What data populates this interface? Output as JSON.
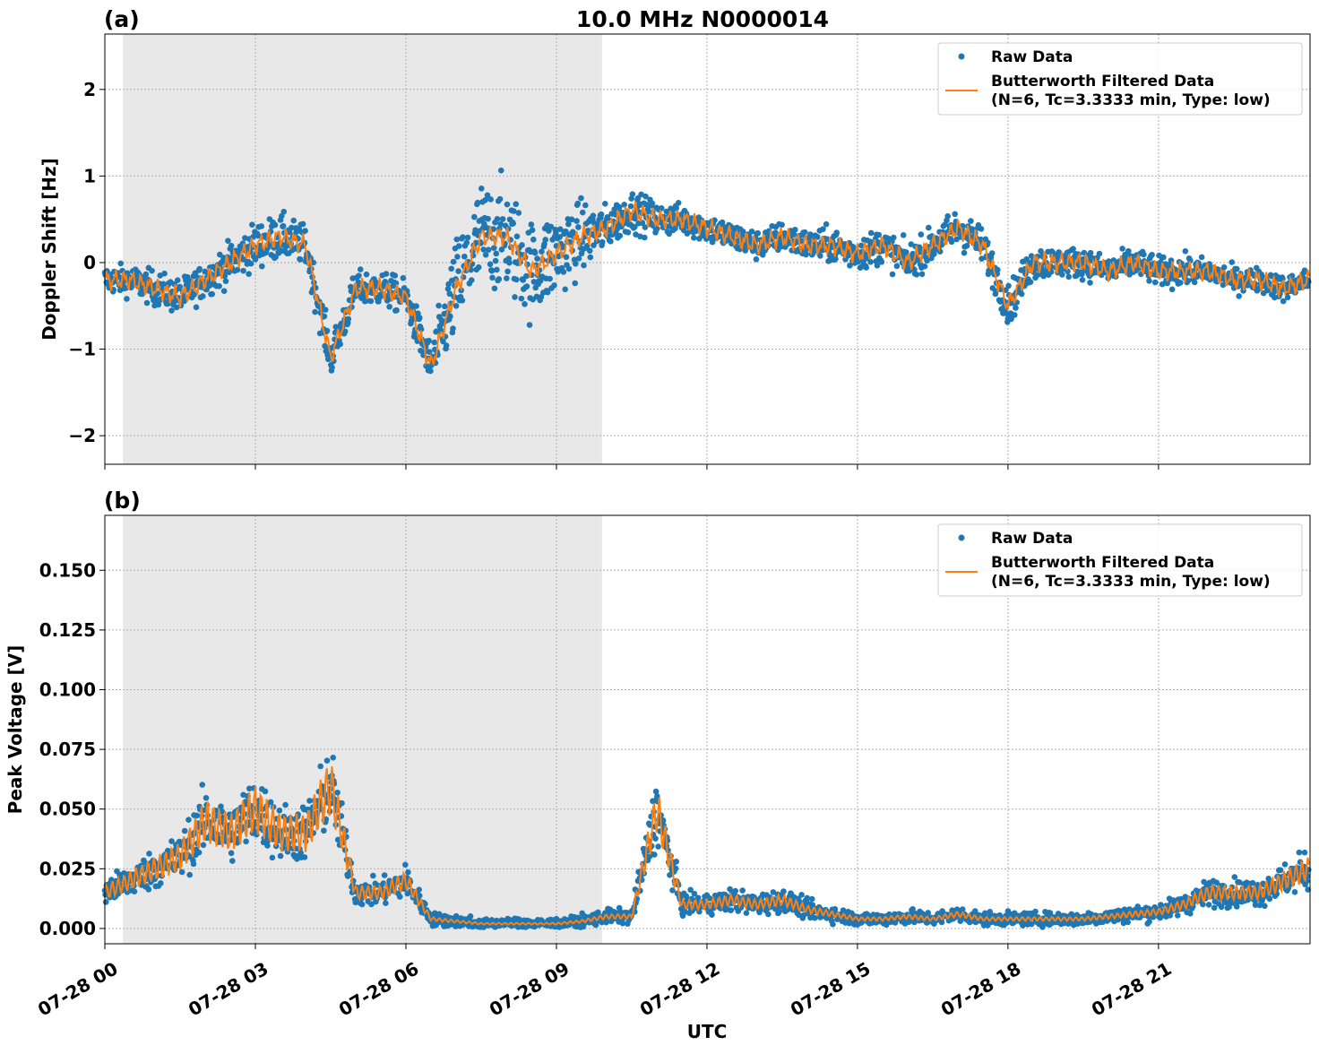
{
  "title": "10.0 MHz N0000014",
  "chart_data": [
    {
      "type": "scatter+line",
      "panel_label": "(a)",
      "ylabel": "Doppler Shift [Hz]",
      "ylim": [
        -2.33,
        2.64
      ],
      "yticks": [
        -2,
        -1,
        0,
        1,
        2
      ],
      "ytick_labels": [
        "−2",
        "−1",
        "0",
        "1",
        "2"
      ],
      "grid": true,
      "legend_placement": "top-right",
      "legend": [
        "Raw Data",
        "Butterworth Filtered Data\n(N=6, Tc=3.3333 min, Type: low)"
      ],
      "shaded_interval_hours": [
        0.36,
        9.91
      ],
      "x_hours": [
        0,
        0.5,
        1,
        1.5,
        2,
        2.5,
        3,
        3.5,
        4,
        4.5,
        5,
        5.5,
        6,
        6.5,
        7,
        7.5,
        8,
        8.5,
        9,
        9.5,
        10,
        10.5,
        11,
        11.5,
        12,
        12.5,
        13,
        13.5,
        14,
        14.5,
        15,
        15.5,
        16,
        16.5,
        17,
        17.5,
        18,
        18.5,
        19,
        19.5,
        20,
        20.5,
        21,
        21.5,
        22,
        22.5,
        23,
        23.5,
        24
      ],
      "filtered": [
        -0.2,
        -0.2,
        -0.3,
        -0.4,
        -0.2,
        0.0,
        0.2,
        0.3,
        0.2,
        -1.1,
        -0.3,
        -0.3,
        -0.4,
        -1.2,
        -0.3,
        0.3,
        0.3,
        -0.1,
        0.1,
        0.3,
        0.4,
        0.6,
        0.5,
        0.5,
        0.4,
        0.3,
        0.2,
        0.3,
        0.2,
        0.2,
        0.1,
        0.2,
        0.0,
        0.2,
        0.4,
        0.2,
        -0.5,
        0.0,
        0.0,
        0.0,
        -0.1,
        0.0,
        -0.1,
        -0.1,
        -0.1,
        -0.2,
        -0.2,
        -0.3,
        -0.2
      ],
      "raw_spread": [
        0.3,
        0.3,
        0.35,
        0.35,
        0.35,
        0.4,
        0.45,
        0.45,
        0.4,
        0.4,
        0.35,
        0.35,
        0.35,
        0.45,
        1.0,
        1.1,
        1.1,
        1.0,
        0.9,
        0.7,
        0.45,
        0.4,
        0.35,
        0.3,
        0.3,
        0.3,
        0.3,
        0.3,
        0.3,
        0.35,
        0.35,
        0.35,
        0.35,
        0.35,
        0.4,
        0.35,
        0.4,
        0.35,
        0.3,
        0.3,
        0.3,
        0.3,
        0.3,
        0.3,
        0.25,
        0.25,
        0.25,
        0.25,
        0.25
      ],
      "colors": {
        "raw": "#1f77b4",
        "filtered": "#ff7f0e",
        "shade": "#e8e8e8"
      }
    },
    {
      "type": "scatter+line",
      "panel_label": "(b)",
      "xlabel": "UTC",
      "ylabel": "Peak Voltage [V]",
      "ylim": [
        -0.0064,
        0.173
      ],
      "yticks": [
        0,
        0.025,
        0.05,
        0.075,
        0.1,
        0.125,
        0.15
      ],
      "ytick_labels": [
        "0.000",
        "0.025",
        "0.050",
        "0.075",
        "0.100",
        "0.125",
        "0.150"
      ],
      "xtick_hours": [
        0,
        3,
        6,
        9,
        12,
        15,
        18,
        21
      ],
      "xtick_labels": [
        "07-28 00",
        "07-28 03",
        "07-28 06",
        "07-28 09",
        "07-28 12",
        "07-28 15",
        "07-28 18",
        "07-28 21"
      ],
      "grid": true,
      "legend_placement": "top-right",
      "legend": [
        "Raw Data",
        "Butterworth Filtered Data\n(N=6, Tc=3.3333 min, Type: low)"
      ],
      "shaded_interval_hours": [
        0.36,
        9.91
      ],
      "x_hours": [
        0,
        0.5,
        1,
        1.5,
        2,
        2.5,
        3,
        3.5,
        4,
        4.5,
        5,
        5.5,
        6,
        6.5,
        7,
        7.5,
        8,
        8.5,
        9,
        9.5,
        10,
        10.5,
        11,
        11.5,
        12,
        12.5,
        13,
        13.5,
        14,
        14.5,
        15,
        15.5,
        16,
        16.5,
        17,
        17.5,
        18,
        18.5,
        19,
        19.5,
        20,
        20.5,
        21,
        21.5,
        22,
        22.5,
        23,
        23.5,
        24
      ],
      "filtered": [
        0.015,
        0.02,
        0.025,
        0.03,
        0.045,
        0.04,
        0.05,
        0.04,
        0.04,
        0.06,
        0.015,
        0.015,
        0.02,
        0.004,
        0.003,
        0.002,
        0.002,
        0.002,
        0.002,
        0.003,
        0.005,
        0.005,
        0.05,
        0.01,
        0.01,
        0.012,
        0.01,
        0.012,
        0.008,
        0.006,
        0.004,
        0.004,
        0.005,
        0.004,
        0.006,
        0.004,
        0.004,
        0.004,
        0.004,
        0.004,
        0.005,
        0.006,
        0.007,
        0.01,
        0.015,
        0.015,
        0.015,
        0.02,
        0.025
      ],
      "colors": {
        "raw": "#1f77b4",
        "filtered": "#ff7f0e",
        "shade": "#e8e8e8"
      }
    }
  ]
}
